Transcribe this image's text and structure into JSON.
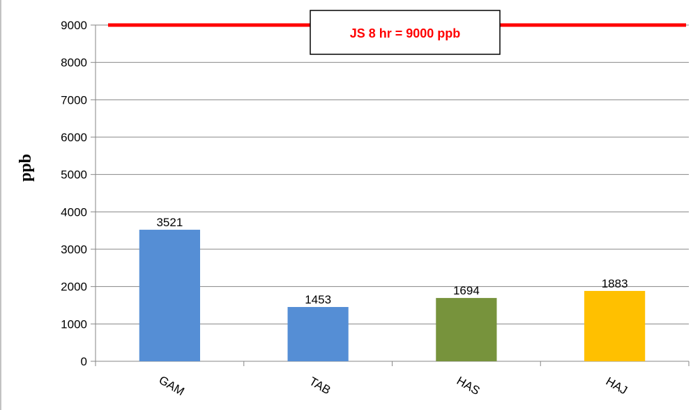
{
  "chart_data": {
    "type": "bar",
    "categories": [
      "GAM",
      "TAB",
      "HAS",
      "HAJ"
    ],
    "values": [
      3521,
      1453,
      1694,
      1883
    ],
    "data_labels": [
      "3521",
      "1453",
      "1694",
      "1883"
    ],
    "bar_colors": [
      "#558ED5",
      "#558ED5",
      "#77933C",
      "#FFC000"
    ],
    "title": "",
    "xlabel": "",
    "ylabel": "ppb",
    "ylim": [
      0,
      9000
    ],
    "yticks": [
      0,
      1000,
      2000,
      3000,
      4000,
      5000,
      6000,
      7000,
      8000,
      9000
    ],
    "ytick_labels": [
      "0",
      "1000",
      "2000",
      "3000",
      "4000",
      "5000",
      "6000",
      "7000",
      "8000",
      "9000"
    ],
    "grid": true,
    "reference_line": {
      "value": 9000,
      "label": "JS 8 hr = 9000 ppb",
      "color": "#FF0000"
    },
    "gridline_color": "#868686",
    "axis_color": "#868686"
  }
}
